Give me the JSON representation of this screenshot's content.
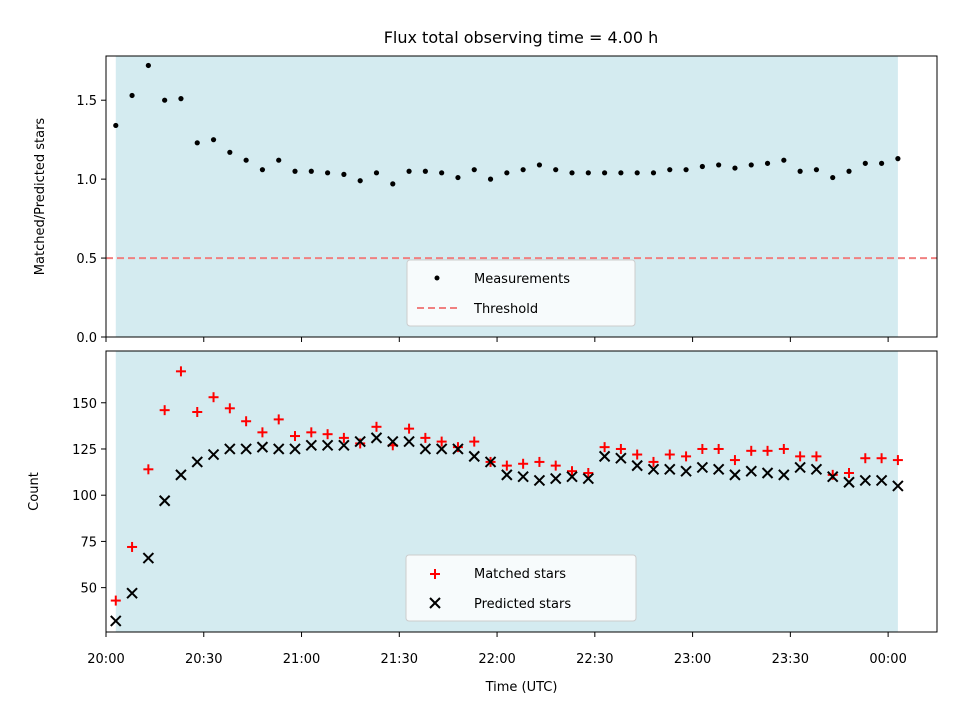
{
  "chart_data": [
    {
      "type": "scatter",
      "title": "Flux total observing time = 4.00 h",
      "xlabel": "",
      "ylabel": "Matched/Predicted stars",
      "xlim": [
        "20:00",
        "00:15"
      ],
      "ylim": [
        0,
        1.78
      ],
      "yticks": [
        "0.0",
        "0.5",
        "1.0",
        "1.5"
      ],
      "grid": false,
      "legend": "lower-center",
      "shaded_span": {
        "start": "20:03",
        "end": "00:03",
        "color": "#d4ebf0"
      },
      "series": [
        {
          "name": "Measurements",
          "marker": "dot",
          "color": "#000000",
          "x": [
            "20:03",
            "20:08",
            "20:13",
            "20:18",
            "20:23",
            "20:28",
            "20:33",
            "20:38",
            "20:43",
            "20:48",
            "20:53",
            "20:58",
            "21:03",
            "21:08",
            "21:13",
            "21:18",
            "21:23",
            "21:28",
            "21:33",
            "21:38",
            "21:43",
            "21:48",
            "21:53",
            "21:58",
            "22:03",
            "22:08",
            "22:13",
            "22:18",
            "22:23",
            "22:28",
            "22:33",
            "22:38",
            "22:43",
            "22:48",
            "22:53",
            "22:58",
            "23:03",
            "23:08",
            "23:13",
            "23:18",
            "23:23",
            "23:28",
            "23:33",
            "23:38",
            "23:43",
            "23:48",
            "23:53",
            "23:58",
            "00:03"
          ],
          "y": [
            1.34,
            1.53,
            1.72,
            1.5,
            1.51,
            1.23,
            1.25,
            1.17,
            1.12,
            1.06,
            1.12,
            1.05,
            1.05,
            1.04,
            1.03,
            0.99,
            1.04,
            0.97,
            1.05,
            1.05,
            1.04,
            1.01,
            1.06,
            1.0,
            1.04,
            1.06,
            1.09,
            1.06,
            1.04,
            1.04,
            1.04,
            1.04,
            1.04,
            1.04,
            1.06,
            1.06,
            1.08,
            1.09,
            1.07,
            1.09,
            1.1,
            1.12,
            1.05,
            1.06,
            1.01,
            1.05,
            1.1,
            1.1,
            1.13
          ]
        },
        {
          "name": "Threshold",
          "marker": "dashed-line",
          "color": "#f08080",
          "y_const": 0.5
        }
      ]
    },
    {
      "type": "scatter",
      "title": "",
      "xlabel": "Time (UTC)",
      "ylabel": "Count",
      "xlim": [
        "20:00",
        "00:15"
      ],
      "ylim": [
        26,
        178
      ],
      "yticks": [
        "50",
        "75",
        "100",
        "125",
        "150"
      ],
      "xticks": [
        "20:00",
        "20:30",
        "21:00",
        "21:30",
        "22:00",
        "22:30",
        "23:00",
        "23:30",
        "00:00"
      ],
      "grid": false,
      "legend": "lower-center",
      "shaded_span": {
        "start": "20:03",
        "end": "00:03",
        "color": "#d4ebf0"
      },
      "series": [
        {
          "name": "Matched stars",
          "marker": "plus",
          "color": "#ff0000",
          "x": [
            "20:03",
            "20:08",
            "20:13",
            "20:18",
            "20:23",
            "20:28",
            "20:33",
            "20:38",
            "20:43",
            "20:48",
            "20:53",
            "20:58",
            "21:03",
            "21:08",
            "21:13",
            "21:18",
            "21:23",
            "21:28",
            "21:33",
            "21:38",
            "21:43",
            "21:48",
            "21:53",
            "21:58",
            "22:03",
            "22:08",
            "22:13",
            "22:18",
            "22:23",
            "22:28",
            "22:33",
            "22:38",
            "22:43",
            "22:48",
            "22:53",
            "22:58",
            "23:03",
            "23:08",
            "23:13",
            "23:18",
            "23:23",
            "23:28",
            "23:33",
            "23:38",
            "23:43",
            "23:48",
            "23:53",
            "23:58",
            "00:03"
          ],
          "y": [
            43,
            72,
            114,
            146,
            167,
            145,
            153,
            147,
            140,
            134,
            141,
            132,
            134,
            133,
            131,
            128,
            137,
            127,
            136,
            131,
            129,
            126,
            129,
            118,
            116,
            117,
            118,
            116,
            113,
            112,
            126,
            125,
            122,
            118,
            122,
            121,
            125,
            125,
            119,
            124,
            124,
            125,
            121,
            121,
            111,
            112,
            120,
            120,
            119
          ]
        },
        {
          "name": "Predicted stars",
          "marker": "x",
          "color": "#000000",
          "x": [
            "20:03",
            "20:08",
            "20:13",
            "20:18",
            "20:23",
            "20:28",
            "20:33",
            "20:38",
            "20:43",
            "20:48",
            "20:53",
            "20:58",
            "21:03",
            "21:08",
            "21:13",
            "21:18",
            "21:23",
            "21:28",
            "21:33",
            "21:38",
            "21:43",
            "21:48",
            "21:53",
            "21:58",
            "22:03",
            "22:08",
            "22:13",
            "22:18",
            "22:23",
            "22:28",
            "22:33",
            "22:38",
            "22:43",
            "22:48",
            "22:53",
            "22:58",
            "23:03",
            "23:08",
            "23:13",
            "23:18",
            "23:23",
            "23:28",
            "23:33",
            "23:38",
            "23:43",
            "23:48",
            "23:53",
            "23:58",
            "00:03"
          ],
          "y": [
            32,
            47,
            66,
            97,
            111,
            118,
            122,
            125,
            125,
            126,
            125,
            125,
            127,
            127,
            127,
            129,
            131,
            129,
            129,
            125,
            125,
            125,
            121,
            118,
            111,
            110,
            108,
            109,
            110,
            109,
            121,
            120,
            116,
            114,
            114,
            113,
            115,
            114,
            111,
            113,
            112,
            111,
            115,
            114,
            110,
            107,
            108,
            108,
            105
          ]
        }
      ]
    }
  ]
}
